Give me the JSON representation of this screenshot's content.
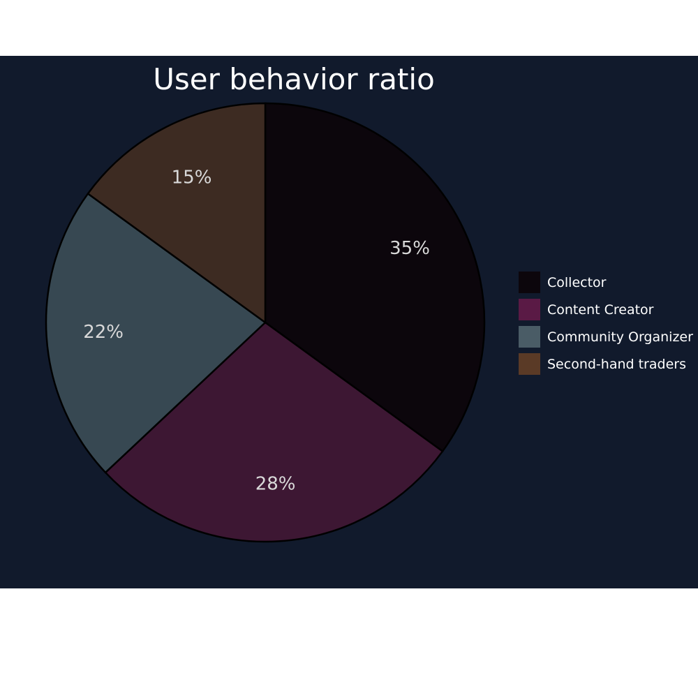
{
  "chart_data": {
    "type": "pie",
    "title": "User behavior ratio",
    "categories": [
      "Collector",
      "Content Creator",
      "Community Organizer",
      "Second-hand traders"
    ],
    "values": [
      35,
      28,
      22,
      15
    ],
    "labels": [
      "35%",
      "28%",
      "22%",
      "15%"
    ],
    "colors": [
      "#0c060c",
      "#3d1733",
      "#374852",
      "#3d2b22"
    ],
    "legend_position": "right"
  },
  "colors": {
    "background": "#111a2c",
    "outline": "#000000",
    "label": "#d9d9d9",
    "title": "#ffffff"
  },
  "legend_swatch_colors": [
    "#0c060c",
    "#5a1a45",
    "#4a5c66",
    "#5a3a26"
  ]
}
